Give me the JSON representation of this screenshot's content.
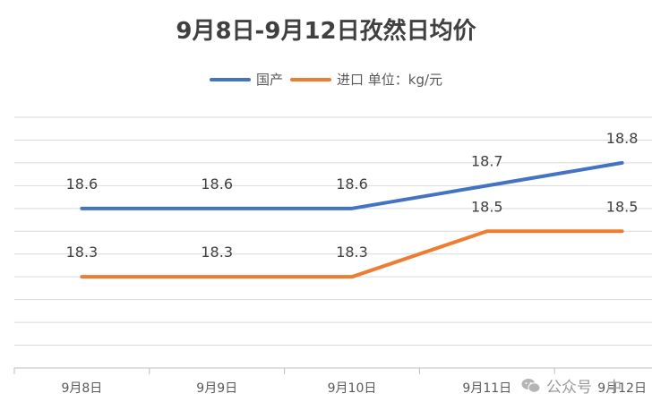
{
  "chart_data": {
    "type": "line",
    "title": "9月8日-9月12日孜然日均价",
    "categories": [
      "9月8日",
      "9月9日",
      "9月10日",
      "9月11日",
      "9月12日"
    ],
    "series": [
      {
        "name": "国产",
        "color": "#4472C4",
        "values": [
          18.6,
          18.6,
          18.6,
          18.7,
          18.8
        ]
      },
      {
        "name": "进口 单位：kg/元",
        "color": "#ED7D31",
        "values": [
          18.3,
          18.3,
          18.3,
          18.5,
          18.5
        ]
      }
    ],
    "ylim": [
      17.9,
      19.0
    ],
    "grid": true,
    "legend": "top"
  },
  "watermark": {
    "text": "公众号 · 中",
    "icon": "wechat-icon"
  }
}
